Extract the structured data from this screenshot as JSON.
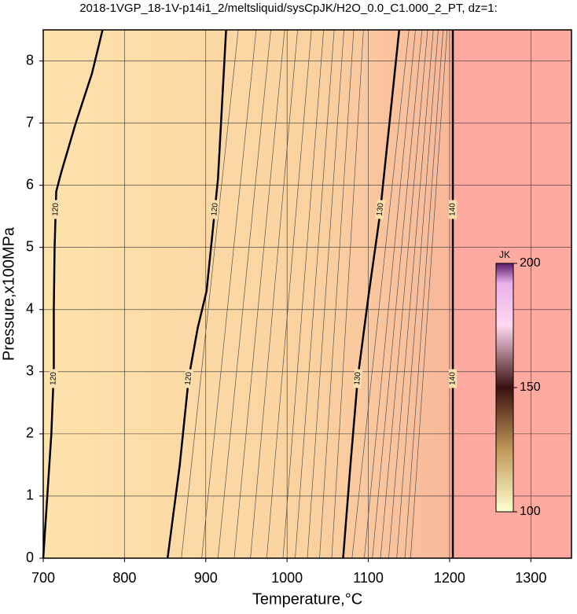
{
  "chart_data": {
    "type": "contour",
    "title": "2018-1VGP_18-1V-p14i1_2/meltsliquid/sysCpJK/H2O_0.0_C1.000_2_PT, dz=1:",
    "x_label": "Temperature,°C",
    "y_label": "Pressure,x100MPa",
    "xlim": [
      700,
      1350
    ],
    "ylim": [
      0,
      8.5
    ],
    "xticks": [
      700,
      800,
      900,
      1000,
      1100,
      1200,
      1300
    ],
    "yticks": [
      0,
      1,
      2,
      3,
      4,
      5,
      6,
      7,
      8
    ],
    "grid": true,
    "contours": [
      {
        "level": 120,
        "x": [
          700,
          705,
          710,
          713,
          713,
          714,
          716,
          722,
          740,
          760,
          773
        ],
        "y": [
          0,
          1,
          2,
          3,
          4,
          5,
          5.9,
          6.2,
          7.0,
          7.8,
          8.5
        ]
      },
      {
        "level": 120,
        "x": [
          853,
          868,
          879,
          890,
          901,
          915,
          925
        ],
        "y": [
          0,
          1.5,
          2.9,
          3.7,
          4.3,
          6.1,
          8.5
        ]
      },
      {
        "level": 130,
        "x": [
          1069,
          1078,
          1087,
          1100,
          1114,
          1126,
          1138
        ],
        "y": [
          0,
          1.5,
          2.9,
          4.2,
          5.5,
          7.0,
          8.5
        ]
      },
      {
        "level": 140,
        "x": [
          1204,
          1204
        ],
        "y": [
          0,
          8.5
        ]
      }
    ],
    "thin_contours": {
      "x_bottom": [
        870,
        895,
        915,
        935,
        955,
        975,
        995,
        1010,
        1025,
        1040,
        1055,
        1080,
        1095,
        1105,
        1115,
        1125,
        1135,
        1145,
        1152
      ],
      "x_top": [
        940,
        962,
        980,
        997,
        1013,
        1030,
        1045,
        1058,
        1070,
        1082,
        1094,
        1150,
        1158,
        1166,
        1173,
        1180,
        1186,
        1192,
        1197
      ]
    },
    "colorbar": {
      "label": "JK",
      "lim": [
        100,
        200
      ],
      "ticks": [
        100,
        150,
        200
      ]
    }
  }
}
